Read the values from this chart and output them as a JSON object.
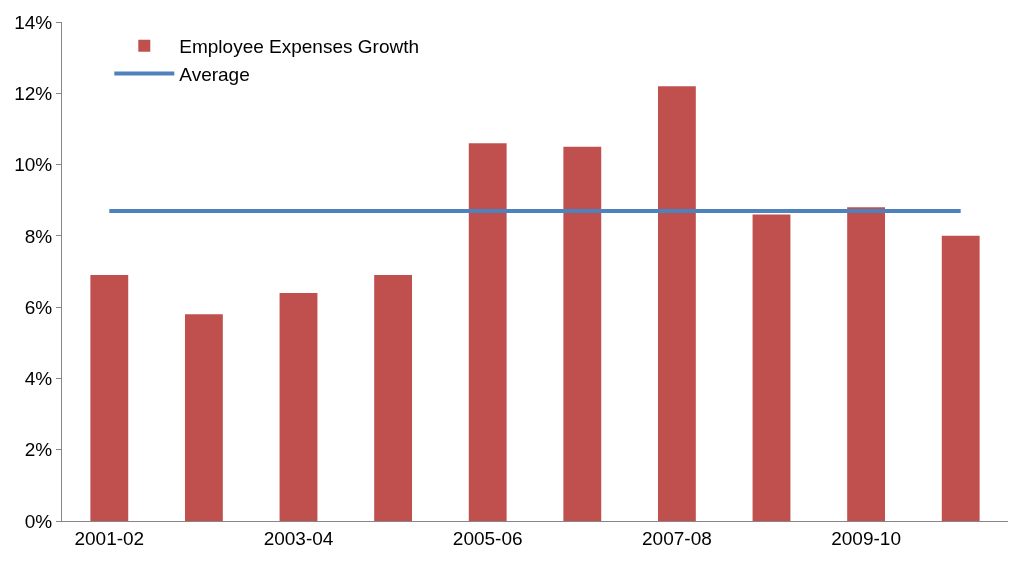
{
  "chart_data": {
    "type": "bar",
    "categories": [
      "2001-02",
      null,
      "2003-04",
      null,
      "2005-06",
      null,
      "2007-08",
      null,
      "2009-10",
      null
    ],
    "series": [
      {
        "name": "Employee Expenses Growth",
        "color": "#c0504d",
        "values": [
          6.9,
          5.8,
          6.4,
          6.9,
          10.6,
          10.5,
          12.2,
          8.6,
          8.8,
          8.0
        ]
      },
      {
        "name": "Average",
        "type": "line",
        "color": "#4f81bd",
        "marker": "none",
        "values": [
          8.7,
          8.7,
          8.7,
          8.7,
          8.7,
          8.7,
          8.7,
          8.7,
          8.7,
          8.7
        ]
      }
    ],
    "ylim": [
      0,
      14
    ],
    "yticks": [
      {
        "value": 0,
        "label": "0%"
      },
      {
        "value": 2,
        "label": "2%"
      },
      {
        "value": 4,
        "label": "4%"
      },
      {
        "value": 6,
        "label": "6%"
      },
      {
        "value": 8,
        "label": "8%"
      },
      {
        "value": 10,
        "label": "10%"
      },
      {
        "value": 12,
        "label": "12%"
      },
      {
        "value": 14,
        "label": "14%"
      }
    ],
    "grid": false,
    "legend": "top left"
  }
}
